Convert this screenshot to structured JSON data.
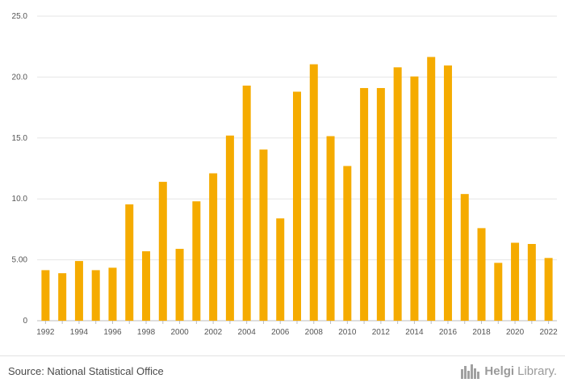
{
  "chart_data": {
    "type": "bar",
    "categories": [
      "1992",
      "1993",
      "1994",
      "1995",
      "1996",
      "1997",
      "1998",
      "1999",
      "2000",
      "2001",
      "2002",
      "2003",
      "2004",
      "2005",
      "2006",
      "2007",
      "2008",
      "2009",
      "2010",
      "2011",
      "2012",
      "2013",
      "2014",
      "2015",
      "2016",
      "2017",
      "2018",
      "2019",
      "2020",
      "2021",
      "2022"
    ],
    "values": [
      4.15,
      3.9,
      4.9,
      4.15,
      4.35,
      9.55,
      5.7,
      11.4,
      5.9,
      9.8,
      12.1,
      15.2,
      19.3,
      14.05,
      8.4,
      18.8,
      21.05,
      15.15,
      12.7,
      19.1,
      19.1,
      20.8,
      20.05,
      21.65,
      20.95,
      10.4,
      7.6,
      4.75,
      6.4,
      6.3,
      5.15
    ],
    "ylim": [
      0,
      25
    ],
    "yticks": [
      0,
      5,
      10,
      15,
      20,
      25
    ],
    "ytick_labels": [
      "0",
      "5.00",
      "10.0",
      "15.0",
      "20.0",
      "25.0"
    ],
    "xtick_labels": [
      "1992",
      "1994",
      "1996",
      "1998",
      "2000",
      "2002",
      "2004",
      "2006",
      "2008",
      "2010",
      "2012",
      "2014",
      "2016",
      "2018",
      "2020",
      "2022"
    ],
    "title": "",
    "xlabel": "",
    "ylabel": "",
    "grid": true,
    "bar_color": "#f5ab00"
  },
  "footer": {
    "source": "Source: National Statistical Office",
    "brand_bold": "Helgi",
    "brand_light": "Library."
  }
}
